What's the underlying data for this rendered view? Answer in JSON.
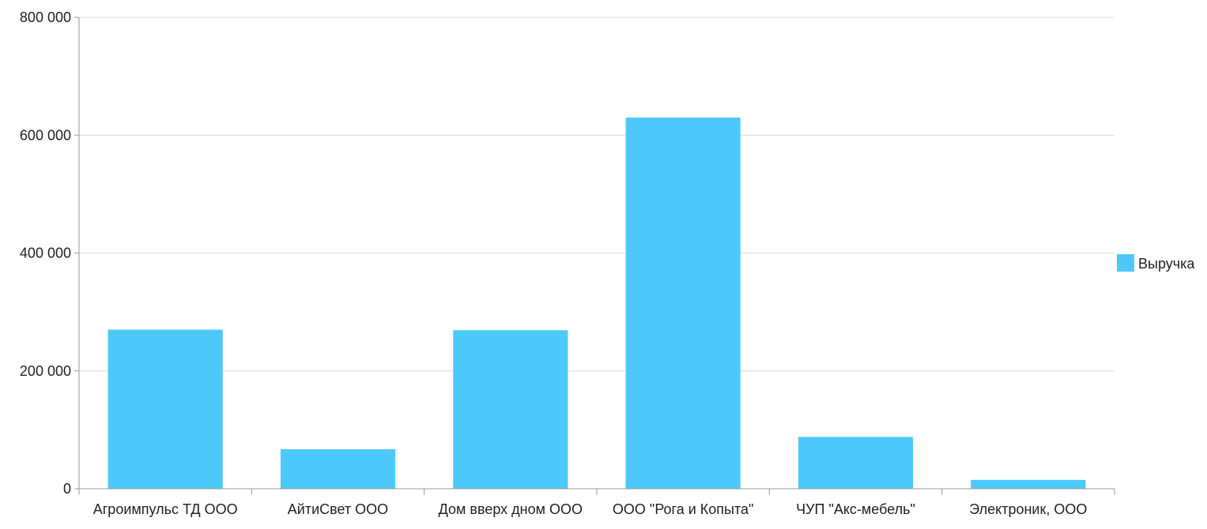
{
  "chart_data": {
    "type": "bar",
    "title": "",
    "xlabel": "",
    "ylabel": "",
    "categories": [
      "Агроимпульс ТД ООО",
      "АйтиСвет ООО",
      "Дом вверх дном ООО",
      "ООО \"Рога и Копыта\"",
      "ЧУП \"Акс-мебель\"",
      "Электроник, ООО"
    ],
    "series": [
      {
        "name": "Выручка",
        "values": [
          270000,
          67000,
          269000,
          630000,
          88000,
          15000
        ],
        "color": "#4dc8fb"
      }
    ],
    "ylim": [
      0,
      800000
    ],
    "yticks": [
      0,
      200000,
      400000,
      600000,
      800000
    ],
    "ytick_labels": [
      "0",
      "200 000",
      "400 000",
      "600 000",
      "800 000"
    ],
    "grid": true,
    "legend_position": "right"
  }
}
